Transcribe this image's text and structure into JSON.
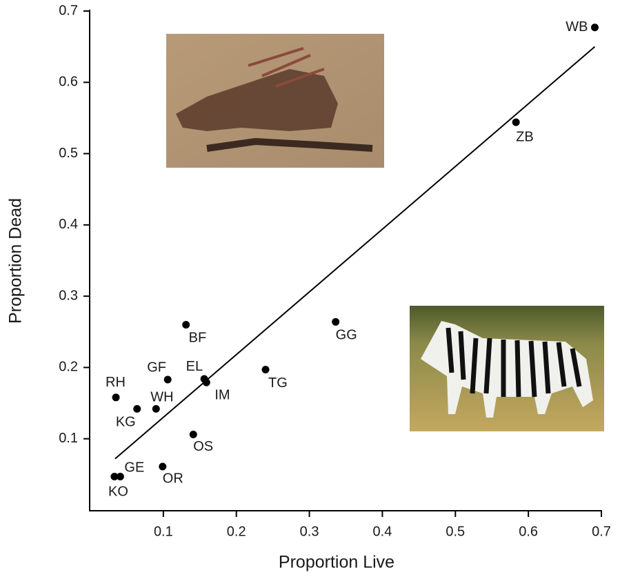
{
  "chart_data": {
    "type": "scatter",
    "x_label": "Proportion Live",
    "y_label": "Proportion Dead",
    "xlim": [
      0,
      0.7
    ],
    "ylim": [
      0,
      0.7
    ],
    "xticks": [
      0.1,
      0.2,
      0.3,
      0.4,
      0.5,
      0.6,
      0.7
    ],
    "yticks": [
      0.1,
      0.2,
      0.3,
      0.4,
      0.5,
      0.6,
      0.7
    ],
    "color": "#000000",
    "labels": [
      "WB",
      "ZB",
      "GG",
      "TG",
      "BF",
      "EL",
      "IM",
      "GF",
      "RH",
      "KG",
      "WH",
      "OS",
      "GE",
      "KO",
      "OR"
    ],
    "x": [
      0.691,
      0.583,
      0.336,
      0.24,
      0.131,
      0.156,
      0.159,
      0.106,
      0.035,
      0.064,
      0.09,
      0.141,
      0.041,
      0.033,
      0.099
    ],
    "y": [
      0.677,
      0.544,
      0.264,
      0.197,
      0.26,
      0.184,
      0.179,
      0.183,
      0.158,
      0.142,
      0.142,
      0.106,
      0.047,
      0.047,
      0.061
    ],
    "fit_line": {
      "x": [
        0.034,
        0.691
      ],
      "y": [
        0.072,
        0.65
      ]
    }
  }
}
